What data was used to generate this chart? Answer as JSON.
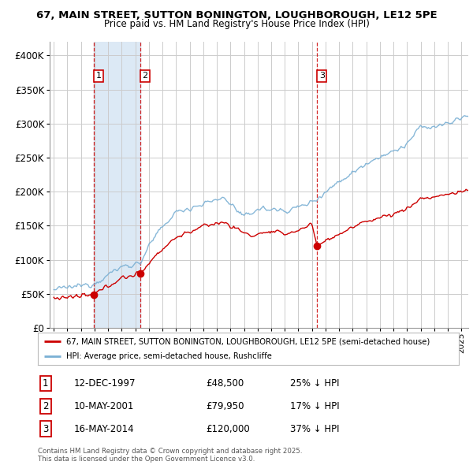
{
  "title_line1": "67, MAIN STREET, SUTTON BONINGTON, LOUGHBOROUGH, LE12 5PE",
  "title_line2": "Price paid vs. HM Land Registry's House Price Index (HPI)",
  "background_color": "#ffffff",
  "plot_bg_color": "#ffffff",
  "grid_color": "#cccccc",
  "red_line_color": "#cc0000",
  "blue_line_color": "#7ab0d4",
  "shade_color": "#dce9f5",
  "sale_marker_color": "#cc0000",
  "vline_color": "#cc0000",
  "ylim": [
    0,
    420000
  ],
  "yticks": [
    0,
    50000,
    100000,
    150000,
    200000,
    250000,
    300000,
    350000,
    400000
  ],
  "ytick_labels": [
    "£0",
    "£50K",
    "£100K",
    "£150K",
    "£200K",
    "£250K",
    "£300K",
    "£350K",
    "£400K"
  ],
  "xlim_start": 1994.7,
  "xlim_end": 2025.5,
  "sales": [
    {
      "date_num": 1997.95,
      "price": 48500,
      "label": "1"
    },
    {
      "date_num": 2001.36,
      "price": 79950,
      "label": "2"
    },
    {
      "date_num": 2014.37,
      "price": 120000,
      "label": "3"
    }
  ],
  "legend_entries": [
    {
      "label": "67, MAIN STREET, SUTTON BONINGTON, LOUGHBOROUGH, LE12 5PE (semi-detached house)",
      "color": "#cc0000"
    },
    {
      "label": "HPI: Average price, semi-detached house, Rushcliffe",
      "color": "#7ab0d4"
    }
  ],
  "transaction_table": [
    {
      "num": "1",
      "date": "12-DEC-1997",
      "price": "£48,500",
      "hpi": "25% ↓ HPI"
    },
    {
      "num": "2",
      "date": "10-MAY-2001",
      "price": "£79,950",
      "hpi": "17% ↓ HPI"
    },
    {
      "num": "3",
      "date": "16-MAY-2014",
      "price": "£120,000",
      "hpi": "37% ↓ HPI"
    }
  ],
  "footnote": "Contains HM Land Registry data © Crown copyright and database right 2025.\nThis data is licensed under the Open Government Licence v3.0."
}
